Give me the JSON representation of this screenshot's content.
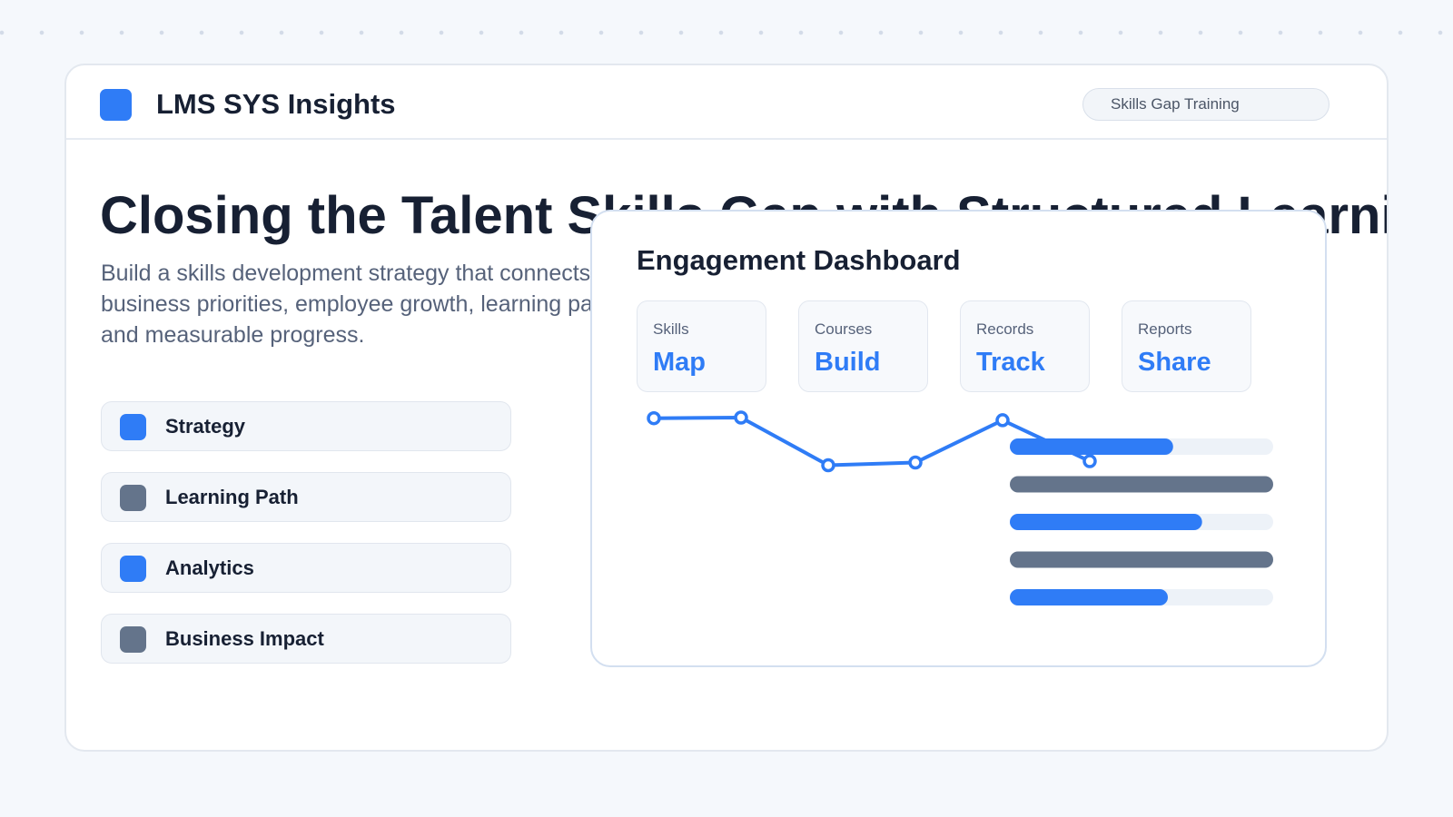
{
  "header": {
    "brand": "LMS SYS Insights",
    "topic": "Skills Gap Training"
  },
  "hero": {
    "title": "Closing the Talent Skills Gap with Structured Learning",
    "description": "Build a skills development strategy that connects business priorities, employee growth, learning paths, and measurable progress."
  },
  "pillars": [
    {
      "label": "Strategy",
      "color": "#2f7cf6"
    },
    {
      "label": "Learning Path",
      "color": "#64748b"
    },
    {
      "label": "Analytics",
      "color": "#2f7cf6"
    },
    {
      "label": "Business Impact",
      "color": "#64748b"
    }
  ],
  "dashboard": {
    "title": "Engagement Dashboard",
    "stats": [
      {
        "caption": "Skills",
        "value": "Map"
      },
      {
        "caption": "Courses",
        "value": "Build"
      },
      {
        "caption": "Records",
        "value": "Track"
      },
      {
        "caption": "Reports",
        "value": "Share"
      }
    ]
  },
  "chart_data": {
    "type": "line",
    "series": [
      {
        "values": [
          0.95,
          0.96,
          0.25,
          0.29,
          0.92,
          0.31
        ]
      }
    ],
    "ylim": [
      0,
      1
    ],
    "bars": {
      "type": "bar",
      "values": [
        0.62,
        1.0,
        0.73,
        1.0,
        0.6
      ],
      "colors": [
        "#2f7cf6",
        "#64748b",
        "#2f7cf6",
        "#64748b",
        "#2f7cf6"
      ],
      "track_color": "#edf2f8"
    },
    "line_color": "#2f7cf6"
  }
}
